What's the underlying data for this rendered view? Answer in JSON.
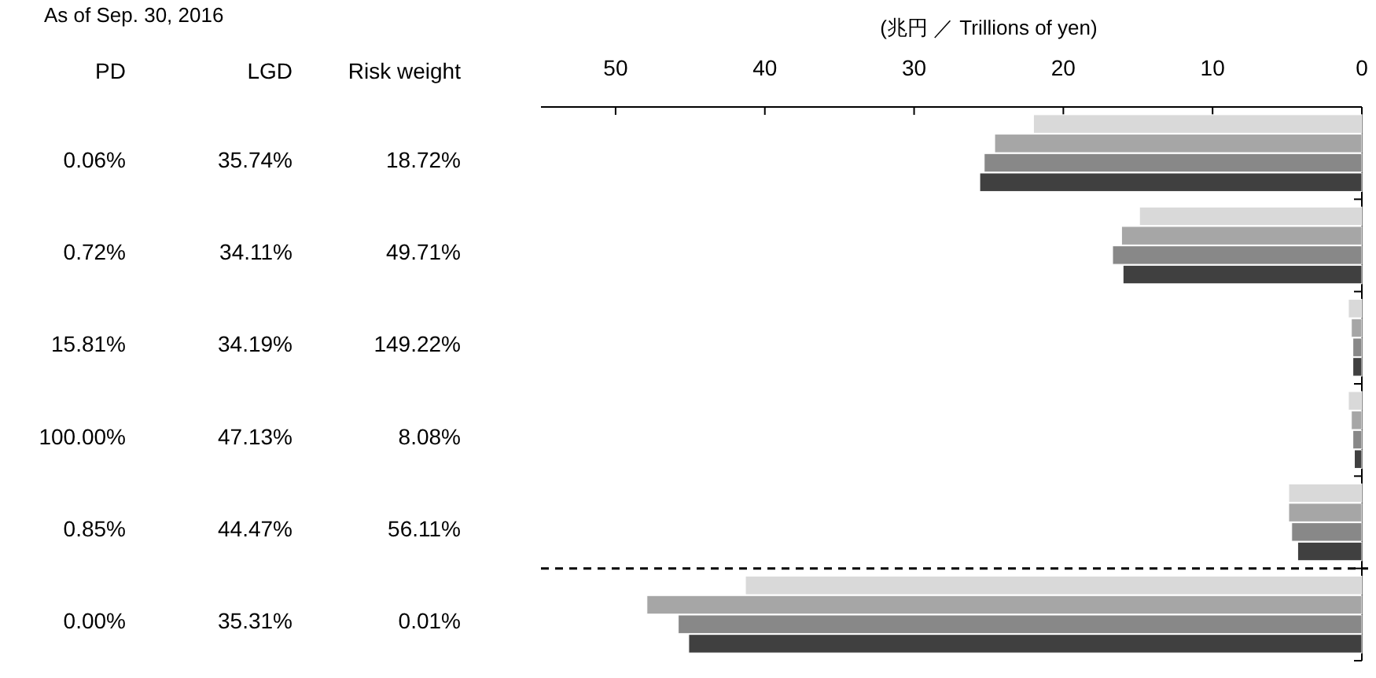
{
  "chart_data": {
    "type": "bar",
    "orientation": "horizontal",
    "title": "As of Sep. 30, 2016",
    "xlabel": "(兆円 ／ Trillions of yen)",
    "categories": [
      null,
      null,
      null,
      null,
      null,
      null
    ],
    "series": [
      {
        "color": "#d9d9d9",
        "values": [
          22.0,
          14.9,
          0.9,
          0.9,
          4.9,
          41.3
        ]
      },
      {
        "color": "#a6a6a6",
        "values": [
          24.6,
          16.1,
          0.7,
          0.7,
          4.9,
          47.9
        ]
      },
      {
        "color": "#888888",
        "values": [
          25.3,
          16.7,
          0.6,
          0.6,
          4.7,
          45.8
        ]
      },
      {
        "color": "#404040",
        "values": [
          25.6,
          16.0,
          0.6,
          0.5,
          4.3,
          45.1
        ]
      }
    ],
    "xlim": [
      55,
      0
    ],
    "xticks": [
      50,
      40,
      30,
      20,
      10,
      0
    ],
    "annotations": [
      "PD",
      "LGD",
      "Risk weight",
      "0.06%",
      "35.74%",
      "18.72%",
      "0.72%",
      "34.11%",
      "49.71%",
      "15.81%",
      "34.19%",
      "149.22%",
      "100.00%",
      "47.13%",
      "8.08%",
      "0.85%",
      "44.47%",
      "56.11%",
      "0.00%",
      "35.31%",
      "0.01%"
    ]
  }
}
